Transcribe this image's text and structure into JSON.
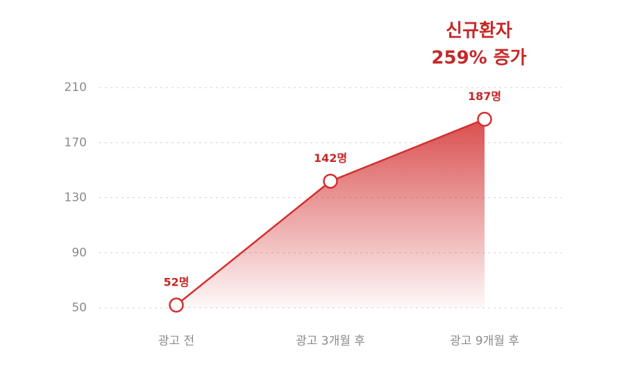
{
  "chart_data": {
    "type": "area",
    "annotation": [
      "신규환자",
      "259% 증가"
    ],
    "categories": [
      "광고 전",
      "광고 3개월 후",
      "광고 9개월 후"
    ],
    "values": [
      52,
      142,
      187
    ],
    "value_labels": [
      "52명",
      "142명",
      "187명"
    ],
    "color": "#d32f2f",
    "ylim": [
      50,
      210
    ],
    "yticks": [
      50,
      90,
      130,
      170,
      210
    ],
    "grid": true
  }
}
